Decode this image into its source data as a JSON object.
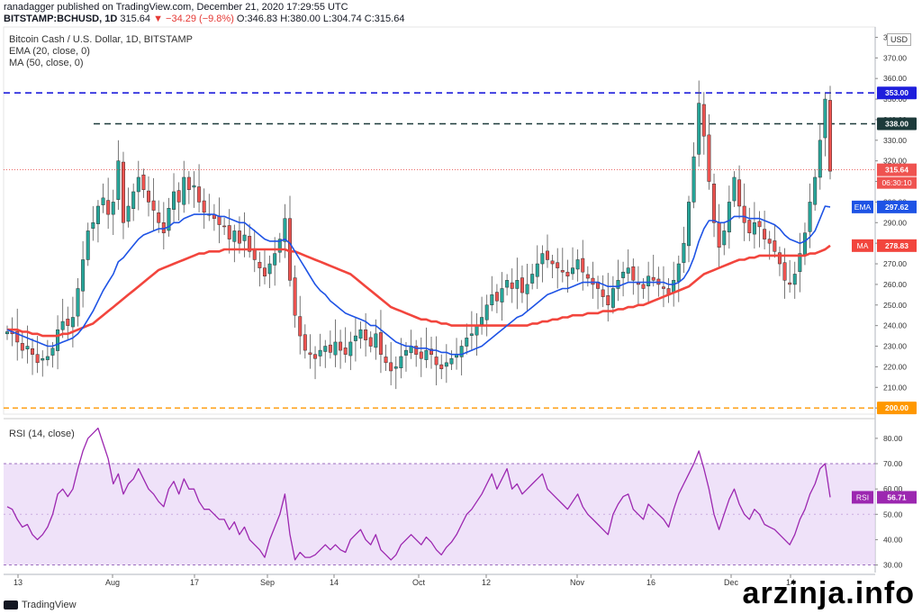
{
  "header": {
    "line1": "ranadagger published on TradingView.com, December 21, 2020 17:29:55 UTC",
    "symbol": "BITSTAMP:BCHUSD, 1D",
    "last": "315.64",
    "change": "▼ −34.29 (−9.8%)",
    "ohlc": "O:346.83 H:380.00 L:304.74 C:315.64"
  },
  "legend": {
    "title": "Bitcoin Cash / U.S. Dollar, 1D, BITSTAMP",
    "ema": "EMA (20, close, 0)",
    "ma": "MA (50, close, 0)"
  },
  "rsi_label": "RSI (14, close)",
  "currency": "USD",
  "footer_logo": "TradingView",
  "watermark": "arzinja.info",
  "colors": {
    "up": "#26a69a",
    "down": "#ef5350",
    "ema": "#1e53e5",
    "ma": "#f2453d",
    "rsi": "#9c27b0",
    "rsi_band": "#e8d6f7",
    "level_blue": "#1e1edc",
    "level_dark": "#1c3a3a",
    "level_orange": "#ff9800"
  },
  "chart_data": {
    "type": "candlestick",
    "price_axis": {
      "ylim": [
        197,
        385
      ],
      "ticks": [
        200,
        210,
        220,
        230,
        240,
        250,
        260,
        270,
        280,
        290,
        300,
        310,
        320,
        330,
        340,
        350,
        360,
        370,
        380
      ]
    },
    "time_axis": [
      "13",
      "Aug",
      "17",
      "Sep",
      "14",
      "Oct",
      "12",
      "Nov",
      "16",
      "Dec",
      "14"
    ],
    "levels": [
      {
        "value": 353.0,
        "label": "353.00",
        "style": "blue"
      },
      {
        "value": 338.0,
        "label": "338.00",
        "style": "dark"
      },
      {
        "value": 200.0,
        "label": "200.00",
        "style": "orange"
      }
    ],
    "badges": {
      "last": "315.64",
      "countdown": "06:30:10",
      "ema_label": "EMA",
      "ema_value": "297.62",
      "ma_label": "MA",
      "ma_value": "278.83",
      "rsi_label": "RSI",
      "rsi_value": "56.71"
    },
    "closes": [
      237,
      236,
      232,
      228,
      230,
      226,
      222,
      224,
      225,
      229,
      238,
      242,
      240,
      244,
      258,
      272,
      286,
      290,
      298,
      302,
      294,
      300,
      320,
      290,
      298,
      305,
      312,
      306,
      300,
      296,
      290,
      285,
      297,
      305,
      300,
      312,
      306,
      308,
      300,
      295,
      294,
      292,
      289,
      288,
      282,
      286,
      280,
      284,
      276,
      272,
      268,
      264,
      270,
      275,
      282,
      292,
      262,
      245,
      235,
      228,
      226,
      224,
      228,
      230,
      227,
      232,
      228,
      226,
      232,
      235,
      238,
      233,
      230,
      236,
      226,
      222,
      218,
      220,
      225,
      228,
      230,
      226,
      224,
      228,
      226,
      221,
      219,
      222,
      224,
      226,
      230,
      234,
      236,
      240,
      244,
      250,
      255,
      252,
      258,
      262,
      258,
      262,
      256,
      260,
      265,
      270,
      275,
      272,
      270,
      268,
      266,
      264,
      268,
      272,
      266,
      263,
      260,
      258,
      254,
      250,
      258,
      262,
      266,
      268,
      262,
      260,
      258,
      264,
      262,
      260,
      258,
      255,
      262,
      270,
      280,
      300,
      322,
      348,
      332,
      310,
      290,
      278,
      286,
      300,
      312,
      298,
      290,
      285,
      290,
      288,
      282,
      280,
      276,
      270,
      262,
      260,
      265,
      275,
      285,
      300,
      312,
      330,
      350,
      315
    ],
    "ema": [
      238,
      237,
      236,
      235,
      234,
      233,
      232,
      231,
      230,
      230,
      231,
      232,
      233,
      234,
      236,
      239,
      243,
      247,
      252,
      257,
      261,
      265,
      271,
      273,
      276,
      279,
      282,
      284,
      285,
      286,
      287,
      287,
      288,
      290,
      290,
      292,
      293,
      294,
      294,
      294,
      294,
      294,
      293,
      293,
      292,
      291,
      290,
      290,
      288,
      286,
      284,
      282,
      281,
      281,
      281,
      282,
      280,
      276,
      272,
      268,
      264,
      260,
      257,
      255,
      252,
      250,
      248,
      246,
      245,
      244,
      243,
      242,
      240,
      240,
      238,
      236,
      234,
      232,
      231,
      230,
      230,
      229,
      229,
      229,
      228,
      228,
      227,
      227,
      226,
      226,
      226,
      227,
      228,
      229,
      230,
      232,
      234,
      236,
      238,
      240,
      242,
      244,
      245,
      247,
      249,
      251,
      253,
      255,
      256,
      257,
      258,
      258,
      259,
      260,
      261,
      261,
      261,
      261,
      260,
      259,
      259,
      259,
      260,
      261,
      261,
      261,
      261,
      261,
      261,
      261,
      261,
      260,
      260,
      261,
      263,
      267,
      273,
      281,
      287,
      291,
      291,
      290,
      290,
      291,
      293,
      293,
      293,
      292,
      292,
      292,
      291,
      290,
      289,
      287,
      284,
      282,
      281,
      280,
      281,
      283,
      286,
      292,
      298,
      297.62
    ],
    "ma": [
      238,
      238,
      238,
      237,
      237,
      236,
      236,
      235,
      235,
      235,
      235,
      236,
      236,
      237,
      238,
      239,
      240,
      241,
      243,
      245,
      247,
      249,
      251,
      253,
      255,
      257,
      259,
      261,
      263,
      265,
      267,
      268,
      269,
      270,
      271,
      272,
      273,
      274,
      275,
      275,
      276,
      276,
      276,
      277,
      277,
      277,
      277,
      277,
      277,
      277,
      277,
      277,
      277,
      277,
      277,
      277,
      276,
      276,
      275,
      274,
      273,
      272,
      271,
      270,
      269,
      268,
      267,
      266,
      265,
      263,
      261,
      259,
      257,
      255,
      253,
      251,
      249,
      248,
      247,
      246,
      245,
      244,
      243,
      243,
      242,
      242,
      241,
      241,
      240,
      240,
      240,
      240,
      240,
      240,
      240,
      240,
      240,
      240,
      240,
      240,
      240,
      240,
      240,
      240,
      241,
      241,
      242,
      242,
      243,
      243,
      244,
      244,
      245,
      245,
      245,
      246,
      246,
      246,
      247,
      247,
      247,
      248,
      248,
      249,
      249,
      250,
      250,
      251,
      252,
      253,
      254,
      255,
      256,
      257,
      258,
      259,
      261,
      263,
      265,
      266,
      267,
      268,
      269,
      270,
      271,
      272,
      272,
      273,
      273,
      274,
      274,
      274,
      274,
      274,
      274,
      274,
      274,
      274,
      274,
      275,
      275,
      276,
      277,
      278.83
    ],
    "rsi_axis": {
      "ylim": [
        27,
        86
      ],
      "ticks": [
        30,
        40,
        50,
        60,
        70,
        80
      ],
      "band": [
        30,
        70
      ]
    },
    "rsi": [
      53,
      52,
      48,
      45,
      46,
      42,
      40,
      42,
      45,
      50,
      58,
      60,
      57,
      60,
      68,
      75,
      80,
      82,
      84,
      78,
      72,
      62,
      66,
      58,
      62,
      64,
      68,
      64,
      60,
      58,
      55,
      53,
      60,
      63,
      58,
      64,
      60,
      60,
      55,
      52,
      52,
      50,
      48,
      48,
      44,
      47,
      42,
      45,
      40,
      38,
      36,
      33,
      40,
      45,
      50,
      58,
      42,
      32,
      35,
      33,
      33,
      34,
      36,
      38,
      36,
      38,
      36,
      35,
      40,
      42,
      44,
      40,
      38,
      42,
      36,
      34,
      32,
      34,
      38,
      40,
      42,
      40,
      38,
      41,
      39,
      36,
      34,
      37,
      39,
      42,
      46,
      50,
      52,
      55,
      58,
      62,
      66,
      60,
      64,
      68,
      60,
      62,
      58,
      60,
      62,
      64,
      66,
      60,
      58,
      56,
      54,
      52,
      55,
      58,
      53,
      50,
      48,
      46,
      44,
      42,
      50,
      54,
      57,
      58,
      52,
      50,
      48,
      54,
      52,
      50,
      48,
      45,
      52,
      58,
      62,
      66,
      70,
      75,
      68,
      60,
      50,
      44,
      50,
      56,
      60,
      54,
      50,
      48,
      52,
      50,
      46,
      45,
      44,
      42,
      40,
      38,
      42,
      48,
      52,
      58,
      62,
      68,
      70,
      56.71
    ]
  }
}
